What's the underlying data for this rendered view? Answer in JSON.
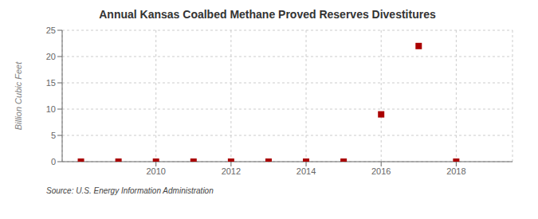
{
  "chart_data": {
    "type": "scatter",
    "title": "Annual Kansas Coalbed Methane Proved Reserves Divestitures",
    "ylabel": "Billion Cubic Feet",
    "annotations": [
      "Source: U.S. Energy Information Administration"
    ],
    "x": [
      2008,
      2009,
      2010,
      2011,
      2012,
      2013,
      2014,
      2015,
      2016,
      2017,
      2018
    ],
    "values": [
      0.0,
      0.0,
      0.0,
      0.0,
      0.0,
      0.0,
      0.0,
      0.0,
      9.0,
      22.0,
      0.0
    ],
    "color": "#AA0000",
    "marker": "square",
    "xlim": [
      2007.5,
      2019.5
    ],
    "xticks": [
      2010,
      2012,
      2014,
      2016,
      2018
    ],
    "ylim": [
      0,
      25
    ],
    "yticks": [
      0,
      5,
      10,
      15,
      20,
      25
    ],
    "grid": true
  }
}
